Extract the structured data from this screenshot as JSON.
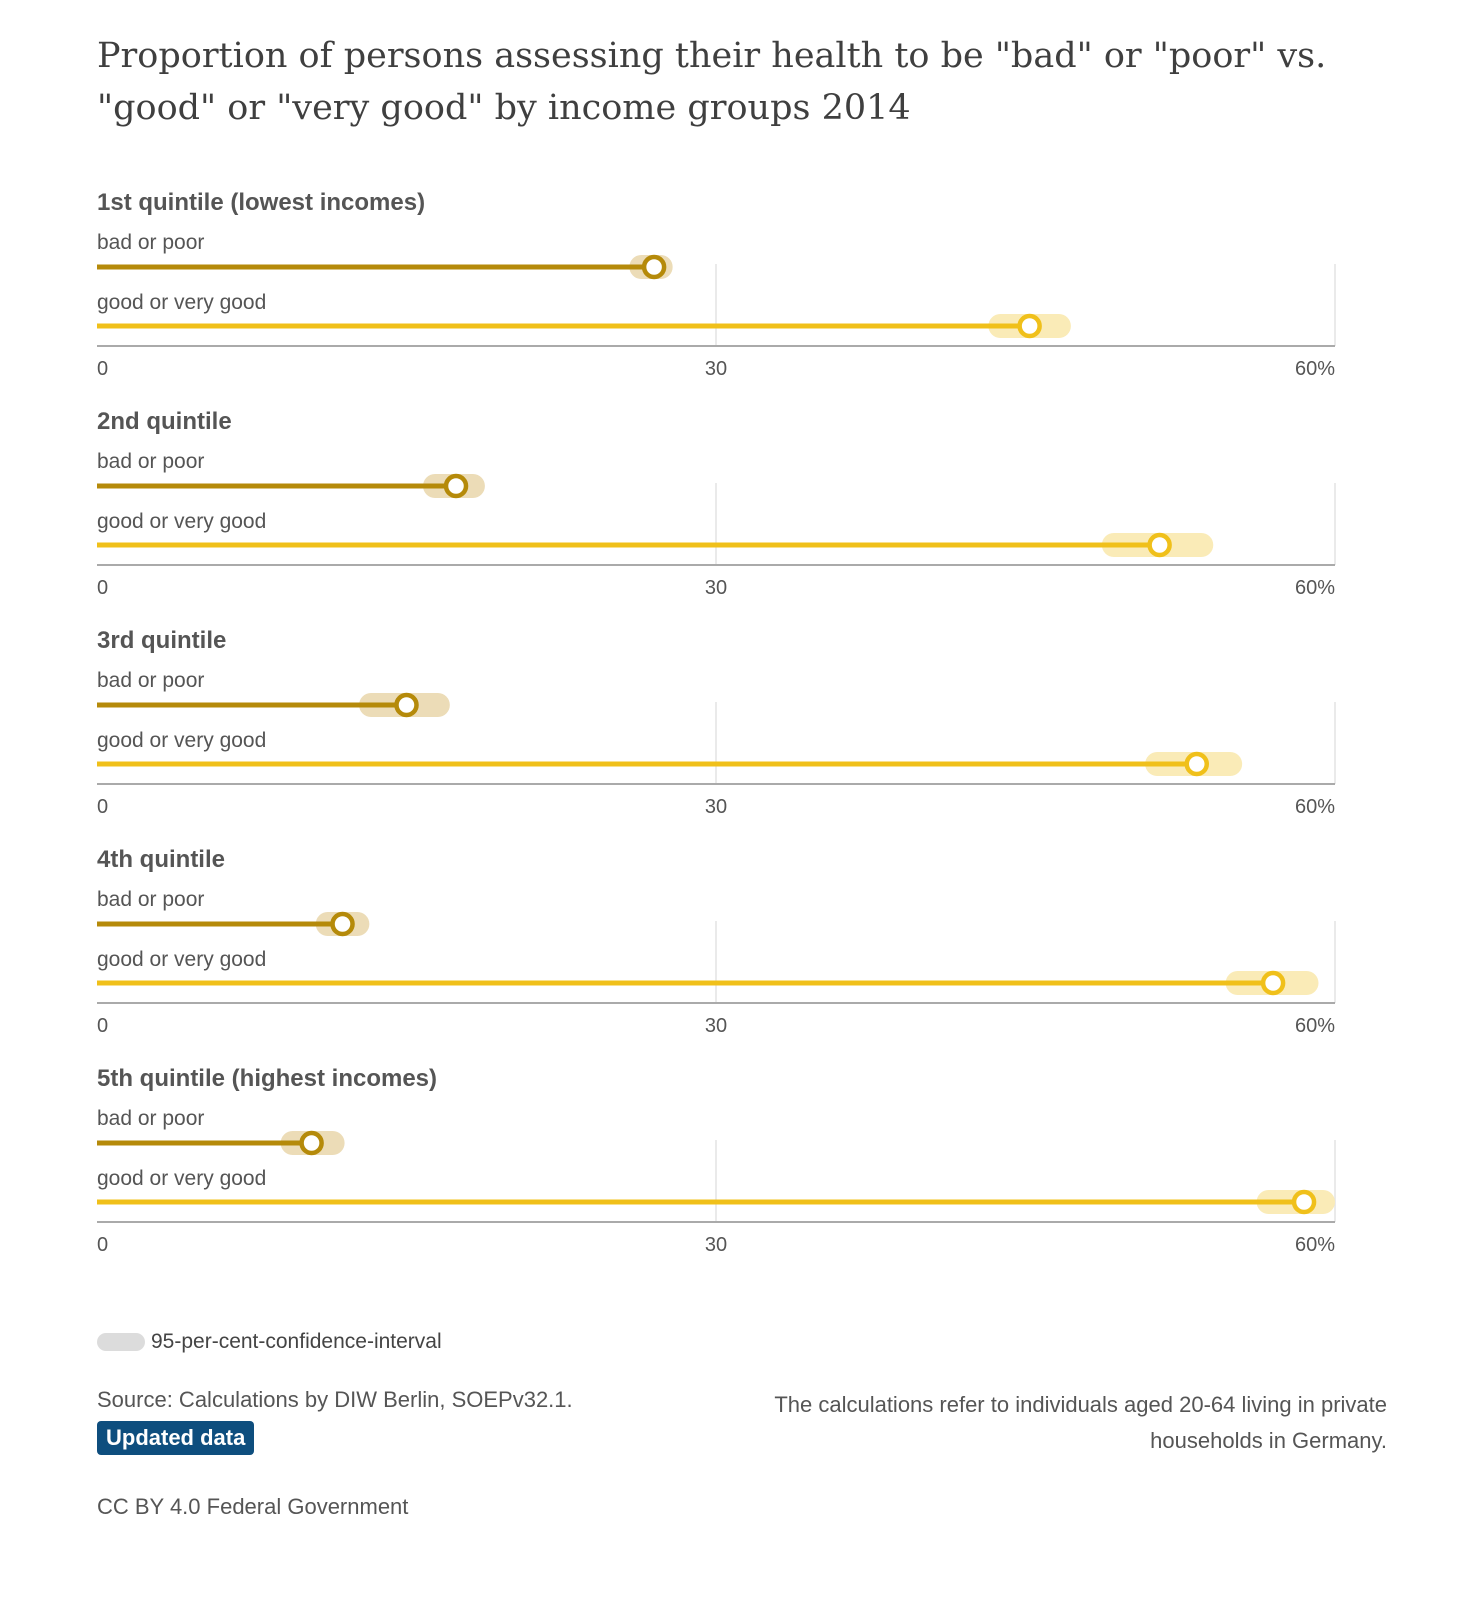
{
  "title": "Proportion of persons assessing their health to be \"bad\" or \"poor\" vs. \"good\" or \"very good\" by income groups 2014",
  "colors": {
    "bad": "#b58a0a",
    "bad_ci": "#ecdcb7",
    "good": "#f0c01a",
    "good_ci": "#faebb7",
    "grid": "#e3e3e3",
    "axis": "#aaaaaa",
    "legend_swatch": "#dcdcdc",
    "badge_bg": "#0e4e7e"
  },
  "chart_data": {
    "type": "dot-range",
    "xlim": [
      0,
      60
    ],
    "x_ticks": [
      0,
      30,
      60
    ],
    "x_tick_labels": [
      "0",
      "30",
      "60%"
    ],
    "series_labels": [
      "bad or poor",
      "good or very good"
    ],
    "panels": [
      {
        "name": "1st quintile (lowest incomes)",
        "bad": {
          "value": 27.0,
          "ci": [
            25.8,
            27.9
          ]
        },
        "good": {
          "value": 45.2,
          "ci": [
            43.2,
            47.2
          ]
        }
      },
      {
        "name": "2nd quintile",
        "bad": {
          "value": 17.4,
          "ci": [
            15.8,
            18.8
          ]
        },
        "good": {
          "value": 51.5,
          "ci": [
            48.7,
            54.1
          ]
        }
      },
      {
        "name": "3rd quintile",
        "bad": {
          "value": 15.0,
          "ci": [
            12.7,
            17.1
          ]
        },
        "good": {
          "value": 53.3,
          "ci": [
            50.8,
            55.5
          ]
        }
      },
      {
        "name": "4th quintile",
        "bad": {
          "value": 11.9,
          "ci": [
            10.6,
            13.2
          ]
        },
        "good": {
          "value": 57.0,
          "ci": [
            54.7,
            59.2
          ]
        }
      },
      {
        "name": "5th quintile (highest incomes)",
        "bad": {
          "value": 10.4,
          "ci": [
            8.9,
            12.0
          ]
        },
        "good": {
          "value": 58.5,
          "ci": [
            56.2,
            60.0
          ]
        }
      }
    ]
  },
  "legend": {
    "label": "95-per-cent-confidence-interval"
  },
  "source": "Source: Calculations by DIW Berlin, SOEPv32.1.",
  "badge": "Updated data",
  "note": "The calculations refer to individuals aged 20-64 living in private households in Germany.",
  "license": "CC BY 4.0 Federal Government"
}
